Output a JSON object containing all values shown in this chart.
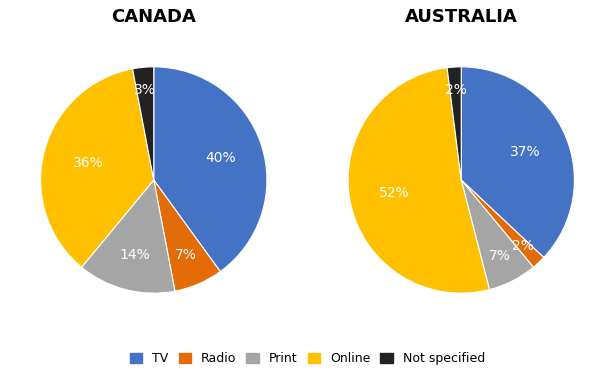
{
  "canada": {
    "title": "CANADA",
    "values": [
      40,
      7,
      14,
      36,
      3
    ],
    "pct_labels": [
      "40%",
      "7%",
      "14%",
      "36%",
      "3%"
    ],
    "colors": [
      "#4472C4",
      "#E36C09",
      "#A5A5A5",
      "#FFC000",
      "#222222"
    ],
    "label_radii": [
      0.62,
      0.72,
      0.68,
      0.6,
      0.8
    ],
    "label_colors": [
      "white",
      "white",
      "white",
      "white",
      "white"
    ]
  },
  "australia": {
    "title": "AUSTRALIA",
    "values": [
      37,
      2,
      7,
      52,
      2
    ],
    "pct_labels": [
      "37%",
      "2%",
      "7%",
      "52%",
      "2%"
    ],
    "colors": [
      "#4472C4",
      "#E36C09",
      "#A5A5A5",
      "#FFC000",
      "#222222"
    ],
    "label_radii": [
      0.62,
      0.8,
      0.75,
      0.6,
      0.8
    ],
    "label_colors": [
      "white",
      "white",
      "white",
      "white",
      "white"
    ]
  },
  "legend_labels": [
    "TV",
    "Radio",
    "Print",
    "Online",
    "Not specified"
  ],
  "legend_colors": [
    "#4472C4",
    "#E36C09",
    "#A5A5A5",
    "#FFC000",
    "#222222"
  ],
  "title_fontsize": 13,
  "label_fontsize": 10,
  "background_color": "#FFFFFF",
  "startangle": 90
}
